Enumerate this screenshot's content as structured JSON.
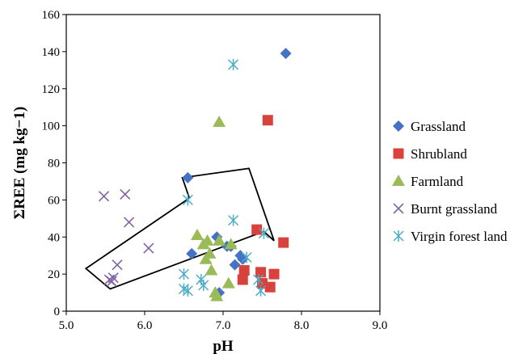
{
  "chart_data": {
    "type": "scatter",
    "title": "",
    "xlabel": "pH",
    "ylabel": "ΣREE (mg kg−1)",
    "xlim": [
      5.0,
      9.0
    ],
    "ylim": [
      0,
      160
    ],
    "xticks": [
      "5.0",
      "6.0",
      "7.0",
      "8.0",
      "9.0"
    ],
    "yticks": [
      "0",
      "20",
      "40",
      "60",
      "80",
      "100",
      "120",
      "140",
      "160"
    ],
    "grid": false,
    "legend_position": "right",
    "annotation": "arrow",
    "series": [
      {
        "name": "Grassland",
        "marker": "diamond",
        "color": "#4472C4",
        "points": [
          [
            7.8,
            139
          ],
          [
            6.55,
            72
          ],
          [
            6.6,
            31
          ],
          [
            6.92,
            40
          ],
          [
            7.05,
            35
          ],
          [
            7.1,
            35
          ],
          [
            7.15,
            25
          ],
          [
            7.22,
            30
          ],
          [
            7.25,
            28
          ],
          [
            6.95,
            10
          ]
        ]
      },
      {
        "name": "Shrubland",
        "marker": "square",
        "color": "#D9423C",
        "points": [
          [
            7.57,
            103
          ],
          [
            7.43,
            44
          ],
          [
            7.77,
            37
          ],
          [
            7.27,
            22
          ],
          [
            7.48,
            21
          ],
          [
            7.65,
            20
          ],
          [
            7.25,
            17
          ],
          [
            7.5,
            15
          ],
          [
            7.6,
            13
          ]
        ]
      },
      {
        "name": "Farmland",
        "marker": "triangle",
        "color": "#9BBB59",
        "points": [
          [
            6.95,
            102
          ],
          [
            6.67,
            41
          ],
          [
            6.8,
            38
          ],
          [
            6.75,
            36
          ],
          [
            6.95,
            38
          ],
          [
            7.1,
            36
          ],
          [
            6.83,
            31
          ],
          [
            6.78,
            28
          ],
          [
            6.85,
            22
          ],
          [
            7.07,
            15
          ],
          [
            6.9,
            10
          ],
          [
            6.92,
            8
          ]
        ]
      },
      {
        "name": "Burnt grassland",
        "marker": "x",
        "color": "#8064A2",
        "points": [
          [
            5.48,
            62
          ],
          [
            5.75,
            63
          ],
          [
            5.8,
            48
          ],
          [
            6.05,
            34
          ],
          [
            5.65,
            25
          ],
          [
            5.55,
            17
          ],
          [
            5.6,
            18
          ],
          [
            5.58,
            16
          ]
        ]
      },
      {
        "name": "Virgin forest land",
        "marker": "star",
        "color": "#4BACC6",
        "points": [
          [
            7.13,
            133
          ],
          [
            6.55,
            60
          ],
          [
            7.13,
            49
          ],
          [
            7.52,
            42
          ],
          [
            7.3,
            29
          ],
          [
            6.5,
            20
          ],
          [
            6.72,
            17
          ],
          [
            6.75,
            14
          ],
          [
            6.5,
            12
          ],
          [
            6.55,
            11
          ],
          [
            7.45,
            17
          ],
          [
            7.48,
            11
          ]
        ]
      }
    ]
  }
}
